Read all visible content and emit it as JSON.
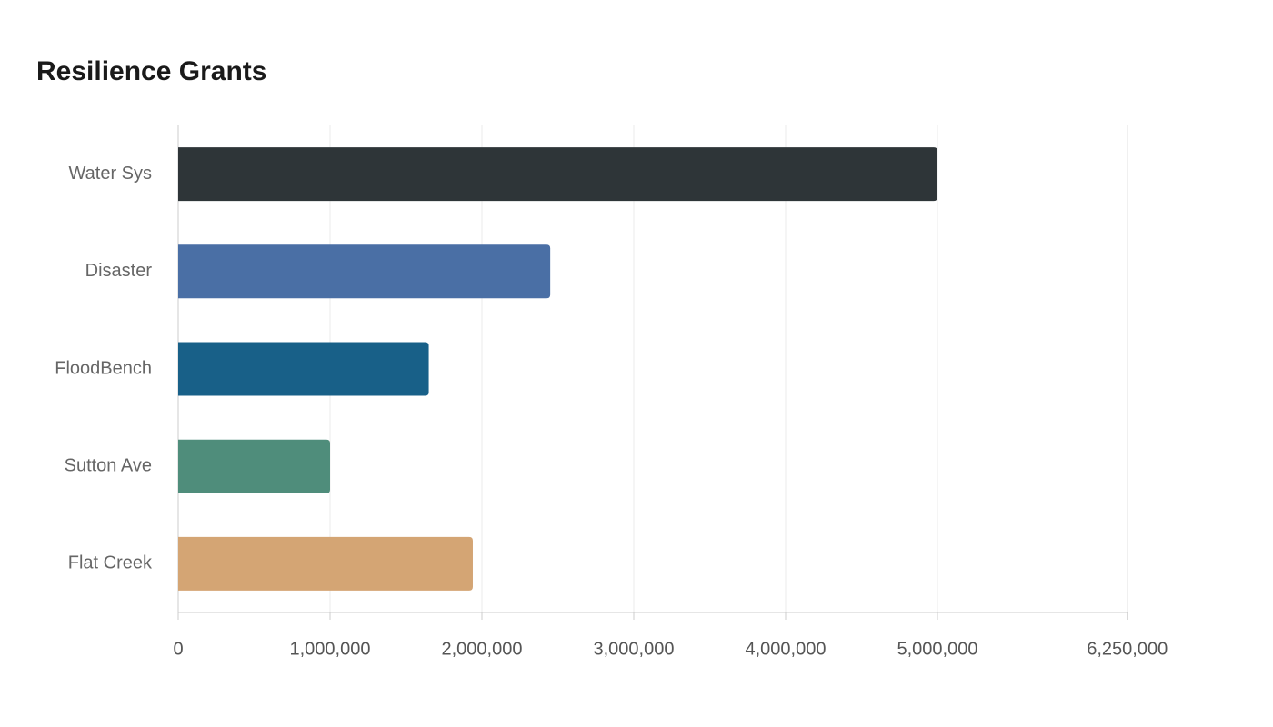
{
  "chart_data": {
    "type": "bar",
    "orientation": "horizontal",
    "title": "Resilience Grants",
    "categories": [
      "Water Sys",
      "Disaster",
      "FloodBench",
      "Sutton Ave",
      "Flat Creek"
    ],
    "values": [
      5000000,
      2450000,
      1650000,
      1000000,
      1940000
    ],
    "colors": [
      "#2e3538",
      "#4a6fa5",
      "#186088",
      "#4f8d7b",
      "#d4a574"
    ],
    "xlim": [
      0,
      6250000
    ],
    "xticks": [
      0,
      {
        "value": 1000000,
        "label": "1,000,000"
      },
      {
        "value": 2000000,
        "label": "2,000,000"
      },
      {
        "value": 3000000,
        "label": "3,000,000"
      },
      {
        "value": 4000000,
        "label": "4,000,000"
      },
      {
        "value": 5000000,
        "label": "5,000,000"
      },
      {
        "value": 6250000,
        "label": "6,250,000"
      }
    ],
    "grid": true
  }
}
